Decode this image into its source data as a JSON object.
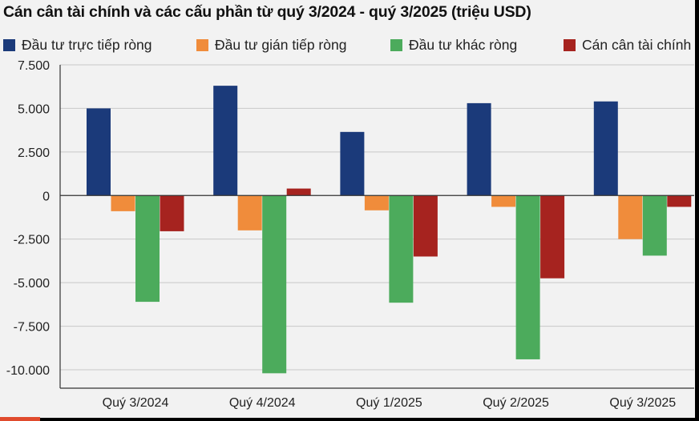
{
  "chart_data": {
    "type": "bar",
    "title": "Cán cân tài chính và các cấu phần từ quý 3/2024 - quý 3/2025 (triệu USD)",
    "categories": [
      "Quý 3/2024",
      "Quý 4/2024",
      "Quý 1/2025",
      "Quý 2/2025",
      "Quý 3/2025"
    ],
    "series": [
      {
        "name": "Đầu tư trực tiếp ròng",
        "color": "#1b3a7a",
        "values": [
          5000,
          6300,
          3650,
          5300,
          5400
        ]
      },
      {
        "name": "Đầu tư gián tiếp ròng",
        "color": "#f08c3b",
        "values": [
          -900,
          -2000,
          -850,
          -650,
          -2500
        ]
      },
      {
        "name": "Đầu tư khác ròng",
        "color": "#4cab5c",
        "values": [
          -6100,
          -10200,
          -6150,
          -9400,
          -3450
        ]
      },
      {
        "name": "Cán cân tài chính",
        "color": "#a6231f",
        "values": [
          -2050,
          400,
          -3500,
          -4750,
          -650
        ]
      }
    ],
    "y_ticks": [
      "7.500",
      "5.000",
      "2.500",
      "0",
      "-2.500",
      "-5.000",
      "-7.500",
      "-10.000"
    ],
    "y_tick_values": [
      7500,
      5000,
      2500,
      0,
      -2500,
      -5000,
      -7500,
      -10000
    ],
    "ylim": [
      -10500,
      7500
    ],
    "grid": true,
    "legend_position": "top"
  }
}
